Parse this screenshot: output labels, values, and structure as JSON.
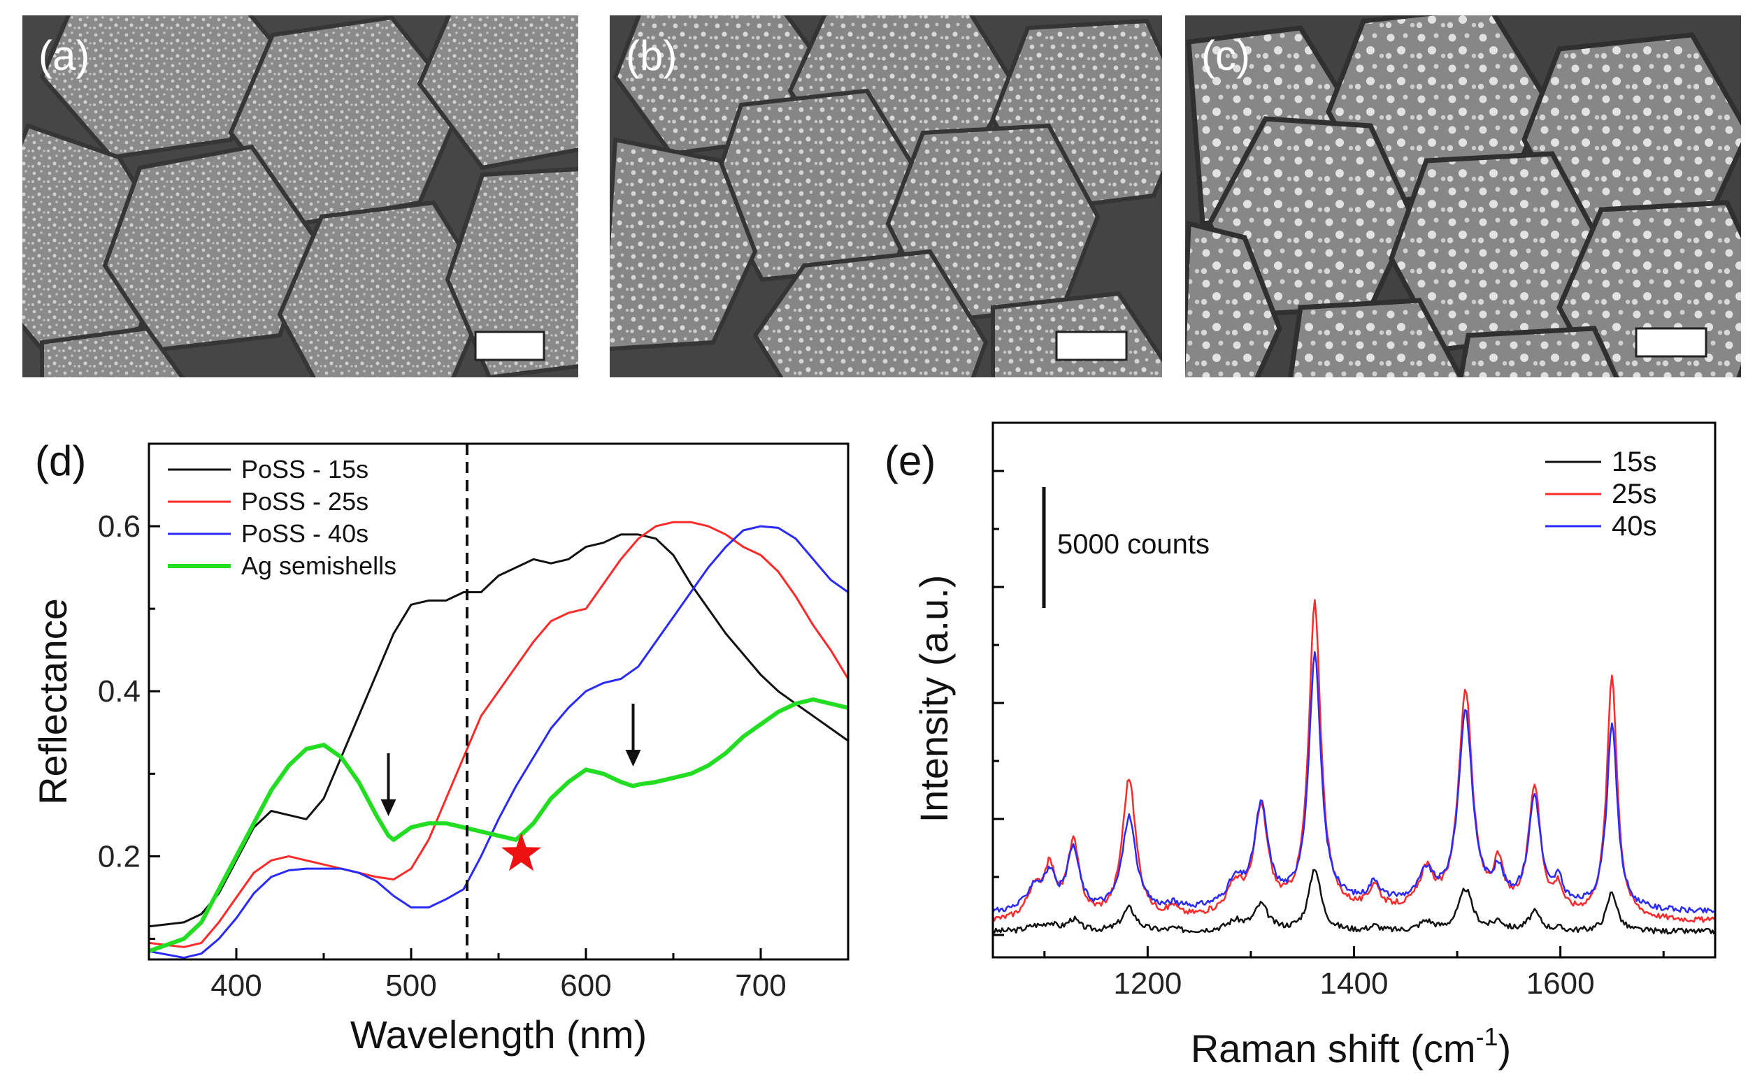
{
  "panels": {
    "a": {
      "label": "(a)"
    },
    "b": {
      "label": "(b)"
    },
    "c": {
      "label": "(c)"
    }
  },
  "images": [
    {
      "label": "(a)",
      "description_type": "sem-micrograph",
      "particle_density": "fine"
    },
    {
      "label": "(b)",
      "description_type": "sem-micrograph",
      "particle_density": "medium"
    },
    {
      "label": "(c)",
      "description_type": "sem-micrograph",
      "particle_density": "coarse"
    }
  ],
  "colors": {
    "black": "#111111",
    "red": "#ff2a2a",
    "blue": "#2a2aff",
    "green": "#22dd22",
    "star": "#ee1111"
  },
  "chart_data": [
    {
      "panel_label": "(d)",
      "type": "line",
      "xlabel": "Wavelength (nm)",
      "ylabel": "Reflectance",
      "xlim": [
        350,
        750
      ],
      "ylim": [
        0.075,
        0.7
      ],
      "xticks": [
        400,
        500,
        600,
        700
      ],
      "yticks": [
        0.2,
        0.4,
        0.6
      ],
      "vline_x": 532,
      "arrows_x": [
        487,
        627
      ],
      "star_x": 563,
      "legend_position": "top-left",
      "series": [
        {
          "name": "PoSS - 15s",
          "color": "#111111",
          "x": [
            350,
            370,
            380,
            390,
            400,
            410,
            420,
            430,
            440,
            450,
            460,
            470,
            480,
            490,
            500,
            510,
            520,
            530,
            540,
            550,
            560,
            570,
            580,
            590,
            600,
            610,
            620,
            630,
            640,
            650,
            660,
            670,
            680,
            690,
            700,
            710,
            720,
            730,
            740,
            750
          ],
          "y": [
            0.115,
            0.12,
            0.13,
            0.155,
            0.195,
            0.235,
            0.255,
            0.25,
            0.245,
            0.27,
            0.32,
            0.37,
            0.42,
            0.47,
            0.505,
            0.51,
            0.51,
            0.52,
            0.52,
            0.54,
            0.55,
            0.56,
            0.555,
            0.56,
            0.575,
            0.58,
            0.59,
            0.59,
            0.585,
            0.565,
            0.53,
            0.5,
            0.47,
            0.445,
            0.42,
            0.4,
            0.385,
            0.37,
            0.355,
            0.34
          ]
        },
        {
          "name": "PoSS - 25s",
          "color": "#ff2a2a",
          "x": [
            350,
            370,
            380,
            390,
            400,
            410,
            420,
            430,
            440,
            450,
            460,
            470,
            480,
            490,
            500,
            510,
            520,
            530,
            540,
            550,
            560,
            570,
            580,
            590,
            600,
            610,
            620,
            630,
            640,
            650,
            660,
            670,
            680,
            690,
            700,
            710,
            720,
            730,
            740,
            750
          ],
          "y": [
            0.095,
            0.09,
            0.095,
            0.12,
            0.15,
            0.18,
            0.195,
            0.2,
            0.195,
            0.19,
            0.185,
            0.18,
            0.175,
            0.172,
            0.185,
            0.22,
            0.27,
            0.32,
            0.37,
            0.4,
            0.43,
            0.46,
            0.485,
            0.495,
            0.5,
            0.53,
            0.56,
            0.585,
            0.6,
            0.605,
            0.605,
            0.6,
            0.59,
            0.575,
            0.565,
            0.545,
            0.515,
            0.48,
            0.45,
            0.415
          ]
        },
        {
          "name": "PoSS - 40s",
          "color": "#2a2aff",
          "x": [
            350,
            370,
            380,
            390,
            400,
            410,
            420,
            430,
            440,
            450,
            460,
            470,
            480,
            490,
            500,
            510,
            520,
            530,
            540,
            550,
            560,
            570,
            580,
            590,
            600,
            610,
            620,
            630,
            640,
            650,
            660,
            670,
            680,
            690,
            700,
            710,
            720,
            730,
            740,
            750
          ],
          "y": [
            0.085,
            0.077,
            0.082,
            0.1,
            0.125,
            0.155,
            0.175,
            0.183,
            0.185,
            0.185,
            0.185,
            0.18,
            0.17,
            0.152,
            0.138,
            0.138,
            0.148,
            0.16,
            0.2,
            0.245,
            0.285,
            0.32,
            0.355,
            0.38,
            0.4,
            0.41,
            0.415,
            0.43,
            0.46,
            0.49,
            0.52,
            0.55,
            0.575,
            0.595,
            0.6,
            0.598,
            0.585,
            0.56,
            0.535,
            0.52
          ]
        },
        {
          "name": "Ag semishells",
          "color": "#22dd22",
          "x": [
            350,
            370,
            380,
            390,
            400,
            410,
            420,
            430,
            440,
            450,
            460,
            470,
            480,
            487,
            490,
            500,
            510,
            520,
            530,
            540,
            550,
            560,
            570,
            580,
            590,
            600,
            610,
            620,
            627,
            630,
            640,
            650,
            660,
            670,
            680,
            690,
            700,
            710,
            720,
            730,
            740,
            750
          ],
          "y": [
            0.085,
            0.1,
            0.12,
            0.16,
            0.2,
            0.24,
            0.28,
            0.31,
            0.33,
            0.335,
            0.32,
            0.29,
            0.25,
            0.225,
            0.22,
            0.235,
            0.24,
            0.24,
            0.235,
            0.23,
            0.225,
            0.22,
            0.24,
            0.27,
            0.29,
            0.305,
            0.3,
            0.29,
            0.285,
            0.287,
            0.29,
            0.295,
            0.3,
            0.31,
            0.325,
            0.345,
            0.36,
            0.375,
            0.385,
            0.39,
            0.385,
            0.38
          ]
        }
      ]
    },
    {
      "panel_label": "(e)",
      "type": "line",
      "xlabel": "Raman shift (cm",
      "xlabel_superscript": "-1",
      "xlabel_suffix": ")",
      "ylabel": "Intensity (a.u.)",
      "xlim": [
        1050,
        1750
      ],
      "ylim": [
        0,
        1.1
      ],
      "xticks": [
        1200,
        1400,
        1600
      ],
      "scale_bar_label": "5000 counts",
      "legend_position": "top-right",
      "series": [
        {
          "name": "15s",
          "color": "#111111",
          "baseline": 0.01,
          "amplitudes": [
            0.01,
            0.015,
            0.025,
            0.05,
            0.005,
            0.02,
            0.055,
            0.135,
            0.01,
            0.02,
            0.09,
            0.02,
            0.04,
            0.005,
            0.085
          ]
        },
        {
          "name": "25s",
          "color": "#ff2a2a",
          "baseline": 0.03,
          "amplitudes": [
            0.06,
            0.1,
            0.16,
            0.3,
            0.02,
            0.06,
            0.22,
            0.66,
            0.05,
            0.08,
            0.47,
            0.09,
            0.27,
            0.05,
            0.52
          ]
        },
        {
          "name": "40s",
          "color": "#2a2aff",
          "baseline": 0.05,
          "amplitudes": [
            0.05,
            0.07,
            0.13,
            0.2,
            0.01,
            0.05,
            0.21,
            0.53,
            0.04,
            0.06,
            0.41,
            0.06,
            0.23,
            0.05,
            0.4
          ]
        }
      ],
      "peak_centers": [
        1090,
        1105,
        1128,
        1182,
        1225,
        1285,
        1310,
        1362,
        1420,
        1470,
        1508,
        1540,
        1575,
        1598,
        1650
      ]
    }
  ]
}
